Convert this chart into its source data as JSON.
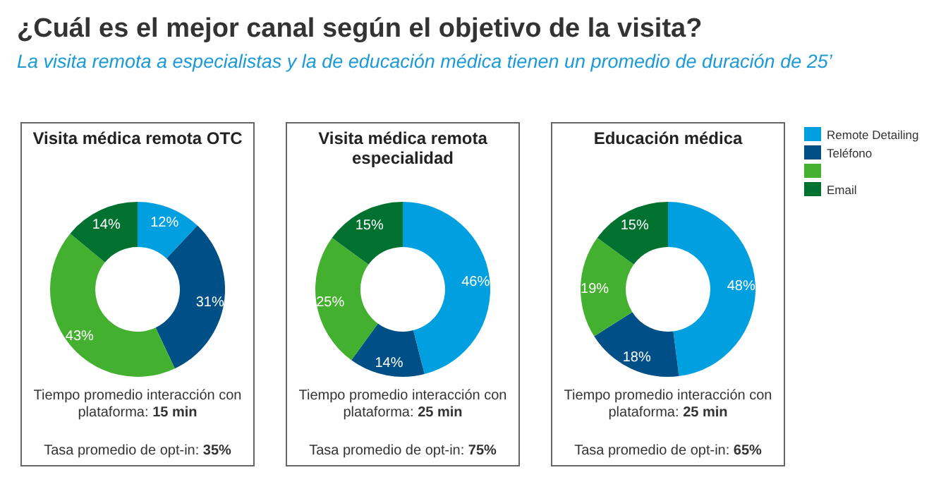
{
  "chart_data": [
    {
      "type": "other",
      "title": "¿Cuál es el mejor canal según el objetivo de la visita?",
      "subtitle": "La visita remota a especialistas y la de educación médica tienen un promedio de duración de 25’"
    },
    {
      "type": "donut",
      "title": "Visita médica remota OTC",
      "categories": [
        null,
        null,
        null,
        null
      ],
      "values": [
        12,
        31,
        43,
        14
      ],
      "value_labels": [
        "12%",
        "31%",
        "43%",
        "14%"
      ],
      "colors": [
        "#00a0e0",
        "#004f86",
        "#44b02f",
        "#00712e"
      ],
      "annotations": [
        "Tiempo promedio interacción con plataforma: 15 min",
        "Tasa promedio de opt-in: 35%"
      ]
    },
    {
      "type": "donut",
      "title": "Visita médica remota especialidad",
      "categories": [
        null,
        null,
        null,
        null
      ],
      "values": [
        46,
        14,
        25,
        15
      ],
      "value_labels": [
        "46%",
        "14%",
        "25%",
        "15%"
      ],
      "colors": [
        "#00a0e0",
        "#004f86",
        "#44b02f",
        "#00712e"
      ],
      "annotations": [
        "Tiempo promedio interacción con plataforma: 25 min",
        "Tasa promedio de opt-in: 75%"
      ]
    },
    {
      "type": "donut",
      "title": "Educación médica",
      "categories": [
        "Remote Detailing",
        "Teléfono",
        null,
        "Email"
      ],
      "values": [
        48,
        18,
        19,
        15
      ],
      "value_labels": [
        "48%",
        "18%",
        "19%",
        "15%"
      ],
      "colors": [
        "#00a0e0",
        "#004f86",
        "#44b02f",
        "#00712e"
      ],
      "legend": "right",
      "annotations": [
        "Tiempo promedio interacción con plataforma: 25 min",
        "Tasa promedio de opt-in: 65%"
      ]
    }
  ]
}
